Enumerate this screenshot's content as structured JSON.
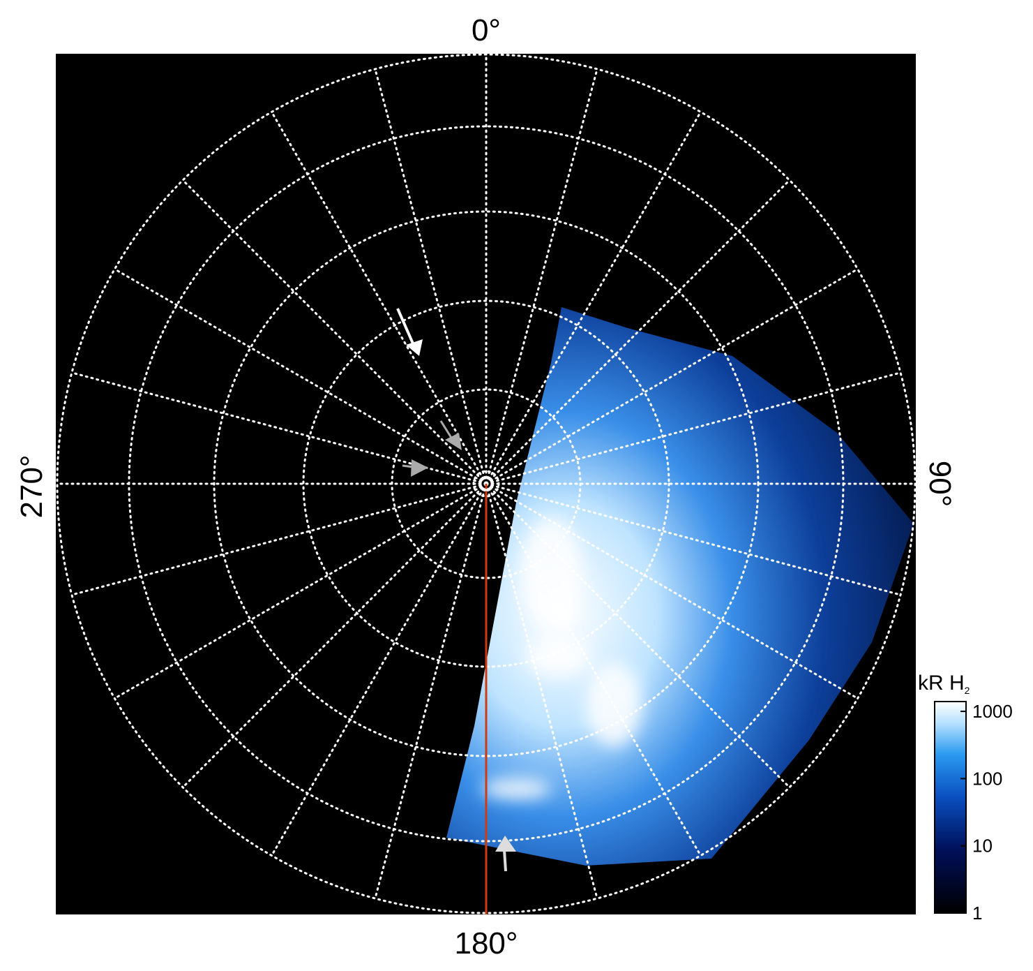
{
  "chart_data": {
    "type": "polar-image",
    "angle_labels": {
      "top": "0°",
      "right": "90°",
      "bottom": "180°",
      "left": "270°"
    },
    "colorbar": {
      "title": "kR H",
      "title_sub": "2",
      "log": true,
      "ylim": [
        1,
        1400
      ],
      "yticks": [
        1,
        10,
        100,
        1000
      ]
    }
  }
}
